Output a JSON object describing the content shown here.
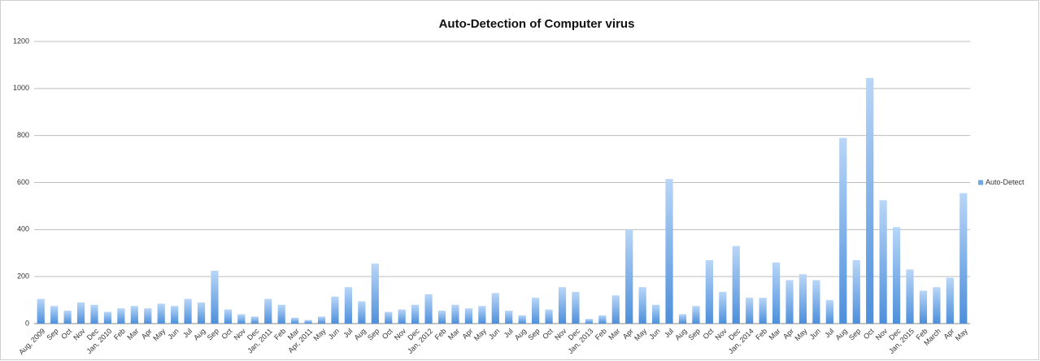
{
  "chart_data": {
    "type": "bar",
    "title": "Auto-Detection of Computer virus",
    "categories": [
      "Aug, 2009",
      "Sep",
      "Oct",
      "Nov",
      "Dec",
      "Jan, 2010",
      "Feb",
      "Mar",
      "Apr",
      "May",
      "Jun",
      "Jul",
      "Aug",
      "Sep",
      "Oct",
      "Nov",
      "Dec",
      "Jan, 2011",
      "Feb",
      "Mar",
      "Apr, 2011",
      "May",
      "Jun",
      "Jul",
      "Aug",
      "Sep",
      "Oct",
      "Nov",
      "Dec",
      "Jan, 2012",
      "Feb",
      "Mar",
      "Apr",
      "May",
      "Jun",
      "Jul",
      "Aug",
      "Sep",
      "Oct",
      "Nov",
      "Dec",
      "Jan, 2013",
      "Feb",
      "Mar",
      "Apr",
      "May",
      "Jun",
      "Jul",
      "Aug",
      "Sep",
      "Oct",
      "Nov",
      "Dec",
      "Jan, 2014",
      "Feb",
      "Mar",
      "Apr",
      "May",
      "Jun",
      "Jul",
      "Aug",
      "Sep",
      "Oct",
      "Nov",
      "Dec",
      "Jan, 2015",
      "Feb",
      "March",
      "Apr",
      "May"
    ],
    "series": [
      {
        "name": "Auto-Detect",
        "color": "#6fa8e6",
        "values": [
          105,
          75,
          55,
          90,
          80,
          50,
          65,
          75,
          65,
          85,
          75,
          105,
          90,
          225,
          60,
          40,
          30,
          105,
          80,
          25,
          15,
          30,
          115,
          155,
          95,
          255,
          50,
          60,
          80,
          125,
          55,
          80,
          65,
          75,
          130,
          55,
          35,
          110,
          60,
          155,
          135,
          20,
          35,
          120,
          400,
          155,
          80,
          615,
          40,
          75,
          270,
          135,
          330,
          110,
          110,
          260,
          185,
          210,
          185,
          100,
          790,
          270,
          1045,
          525,
          410,
          230,
          140,
          155,
          195,
          555
        ]
      }
    ],
    "ylim": [
      0,
      1200
    ],
    "yticks": [
      0,
      200,
      400,
      600,
      800,
      1000,
      1200
    ],
    "grid": true,
    "legend": "right"
  }
}
